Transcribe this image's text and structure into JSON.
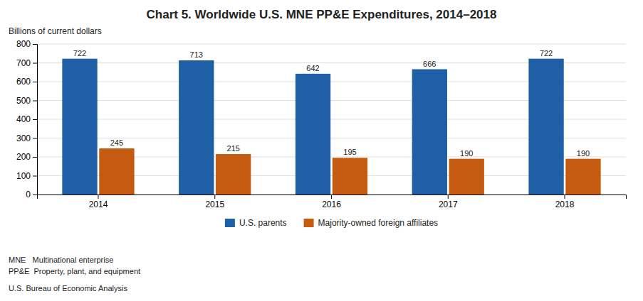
{
  "chart_data": {
    "type": "bar",
    "title": "Chart 5. Worldwide U.S. MNE PP&E Expenditures, 2014–2018",
    "ylabel": "Billions of current dollars",
    "categories": [
      "2014",
      "2015",
      "2016",
      "2017",
      "2018"
    ],
    "series": [
      {
        "name": "U.S. parents",
        "color": "#1F5FA6",
        "values": [
          722,
          713,
          642,
          666,
          722
        ]
      },
      {
        "name": "Majority-owned foreign affiliates",
        "color": "#C55A11",
        "values": [
          245,
          215,
          195,
          190,
          190
        ]
      }
    ],
    "ylim": [
      0,
      800
    ],
    "yticks": [
      0,
      100,
      200,
      300,
      400,
      500,
      600,
      700,
      800
    ],
    "grid": true,
    "data_labels": true,
    "legend": "bottom",
    "annotations": [
      "MNE   Multinational enterprise",
      "PP&E  Property, plant, and equipment",
      "U.S. Bureau of Economic Analysis"
    ]
  }
}
